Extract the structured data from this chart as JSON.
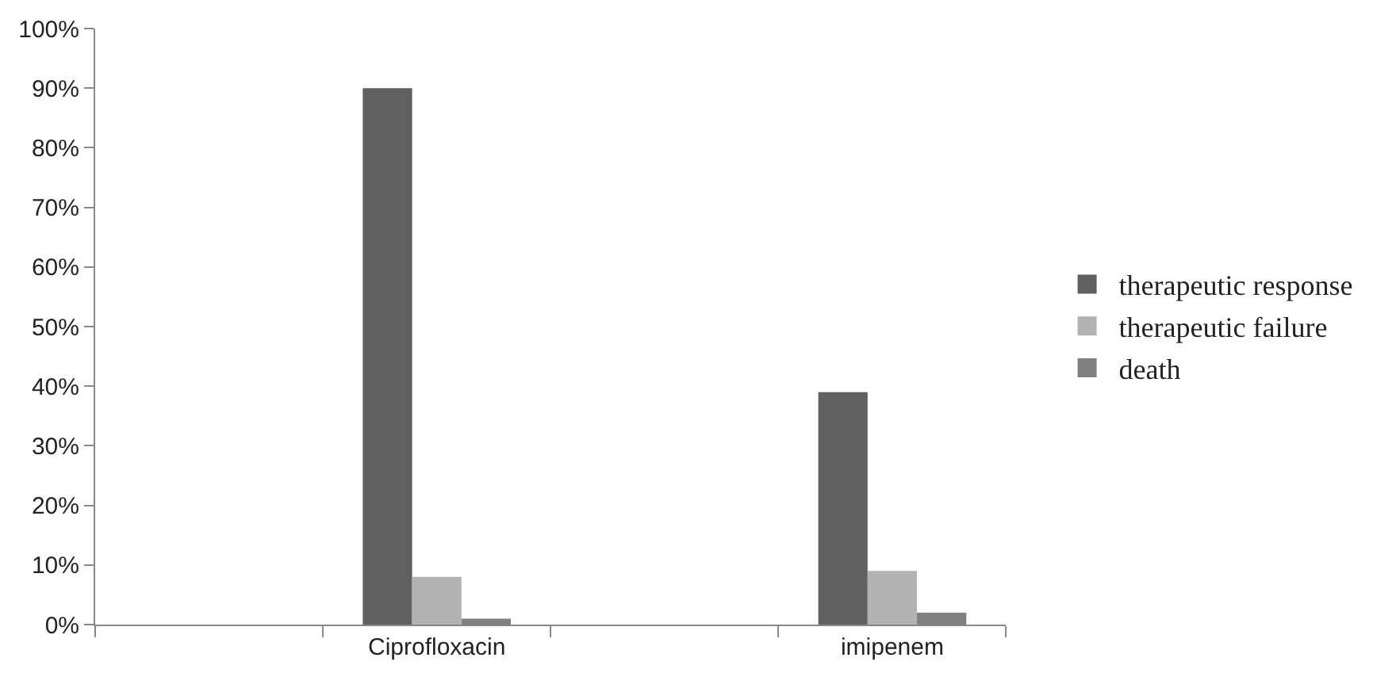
{
  "chart_data": {
    "type": "bar",
    "categories": [
      null,
      "Ciprofloxacin",
      null,
      "imipenem"
    ],
    "series": [
      {
        "name": "therapeutic response",
        "color": "#606060",
        "values": [
          null,
          90,
          null,
          39
        ]
      },
      {
        "name": "therapeutic failure",
        "color": "#b2b2b2",
        "values": [
          null,
          8,
          null,
          9
        ]
      },
      {
        "name": "death",
        "color": "#808080",
        "values": [
          null,
          1,
          null,
          2
        ]
      }
    ],
    "ylim": [
      0,
      100
    ],
    "yticks": [
      {
        "value": 0,
        "label": "0%"
      },
      {
        "value": 10,
        "label": "10%"
      },
      {
        "value": 20,
        "label": "20%"
      },
      {
        "value": 30,
        "label": "30%"
      },
      {
        "value": 40,
        "label": "40%"
      },
      {
        "value": 50,
        "label": "50%"
      },
      {
        "value": 60,
        "label": "60%"
      },
      {
        "value": 70,
        "label": "70%"
      },
      {
        "value": 80,
        "label": "80%"
      },
      {
        "value": 90,
        "label": "90%"
      },
      {
        "value": 100,
        "label": "100%"
      }
    ],
    "legend": "right"
  }
}
